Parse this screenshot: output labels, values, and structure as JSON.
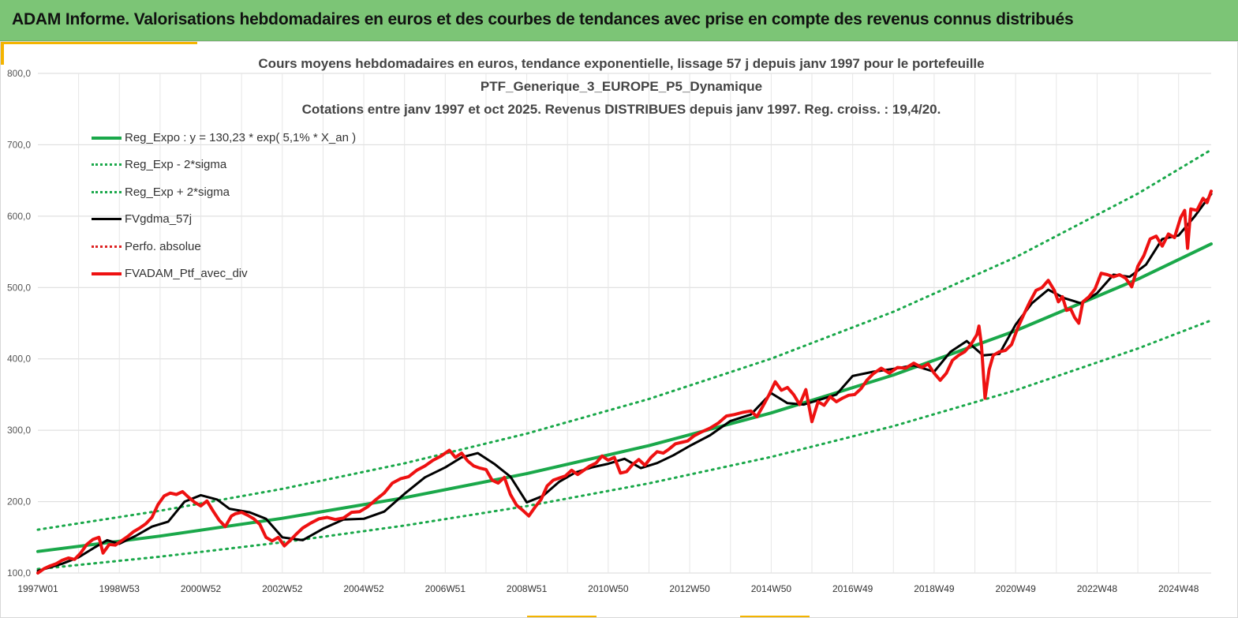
{
  "header": {
    "title": "ADAM Informe. Valorisations hebdomadaires en euros et des courbes de tendances avec prise en compte des revenus connus distribués"
  },
  "colors": {
    "header_bg": "#7cc576",
    "accent": "#f4b400",
    "trend": "#1aa84a",
    "smoothed": "#000000",
    "portfolio": "#ee1111",
    "absolute": "#dd2222"
  },
  "chart_data": {
    "type": "line",
    "title_lines": [
      "Cours moyens hebdomadaires  en euros, tendance exponentielle, lissage 57 j depuis janv 1997 pour le portefeuille",
      "PTF_Generique_3_EUROPE_P5_Dynamique",
      "Cotations  entre janv 1997 et oct 2025. Revenus DISTRIBUES depuis janv 1997. Reg. croiss. : 19,4/20."
    ],
    "xlabel": "",
    "ylabel": "",
    "xlim": [
      1997.0,
      2025.8
    ],
    "ylim": [
      100,
      800
    ],
    "y_ticks": [
      "100,0",
      "200,0",
      "300,0",
      "400,0",
      "500,0",
      "600,0",
      "700,0",
      "800,0"
    ],
    "x_ticks": [
      {
        "label": "1997W01",
        "x": 1997.0
      },
      {
        "label": "1998W53",
        "x": 1999.0
      },
      {
        "label": "2000W52",
        "x": 2001.0
      },
      {
        "label": "2002W52",
        "x": 2003.0
      },
      {
        "label": "2004W52",
        "x": 2005.0
      },
      {
        "label": "2006W51",
        "x": 2007.0
      },
      {
        "label": "2008W51",
        "x": 2009.0
      },
      {
        "label": "2010W50",
        "x": 2011.0
      },
      {
        "label": "2012W50",
        "x": 2013.0
      },
      {
        "label": "2014W50",
        "x": 2015.0
      },
      {
        "label": "2016W49",
        "x": 2017.0
      },
      {
        "label": "2018W49",
        "x": 2019.0
      },
      {
        "label": "2020W49",
        "x": 2021.0
      },
      {
        "label": "2022W48",
        "x": 2023.0
      },
      {
        "label": "2024W48",
        "x": 2025.0
      }
    ],
    "grid": true,
    "legend_position": "top-left",
    "series": [
      {
        "name": "Reg_Expo : y = 130,23 * exp( 5,1% *  X_an )",
        "style": "solid-thick",
        "color": "#1aa84a",
        "x": [
          1997.0,
          2000.0,
          2003.0,
          2006.0,
          2009.0,
          2012.0,
          2015.0,
          2018.0,
          2021.0,
          2024.0,
          2025.8
        ],
        "values": [
          130.2,
          151.7,
          176.6,
          205.5,
          239.2,
          278.5,
          324.3,
          377.5,
          439.5,
          511.7,
          561.0
        ]
      },
      {
        "name": "Reg_Exp - 2*sigma",
        "style": "dotted",
        "color": "#1aa84a",
        "x": [
          1997.0,
          2000.0,
          2003.0,
          2006.0,
          2009.0,
          2012.0,
          2015.0,
          2018.0,
          2021.0,
          2024.0,
          2025.8
        ],
        "values": [
          105.5,
          122.9,
          143.0,
          166.5,
          193.8,
          225.6,
          262.7,
          305.8,
          356.0,
          414.5,
          454.0
        ]
      },
      {
        "name": "Reg_Exp + 2*sigma",
        "style": "dotted",
        "color": "#1aa84a",
        "x": [
          1997.0,
          2000.0,
          2003.0,
          2006.0,
          2009.0,
          2012.0,
          2015.0,
          2018.0,
          2021.0,
          2024.0,
          2025.8
        ],
        "values": [
          160.7,
          187.2,
          217.9,
          253.7,
          295.3,
          343.8,
          400.3,
          466.0,
          542.5,
          631.6,
          693.0
        ]
      },
      {
        "name": "FVgdma_57j",
        "style": "solid",
        "color": "#000000",
        "x": [
          1997.0,
          1997.3,
          1997.6,
          1998.0,
          1998.4,
          1998.7,
          1999.0,
          1999.4,
          1999.8,
          2000.2,
          2000.6,
          2001.0,
          2001.4,
          2001.7,
          2002.2,
          2002.6,
          2003.0,
          2003.5,
          2004.0,
          2004.5,
          2005.0,
          2005.5,
          2006.0,
          2006.5,
          2007.0,
          2007.4,
          2007.8,
          2008.2,
          2008.6,
          2009.0,
          2009.4,
          2009.8,
          2010.2,
          2010.6,
          2011.0,
          2011.4,
          2011.8,
          2012.2,
          2012.6,
          2013.0,
          2013.5,
          2014.0,
          2014.5,
          2015.0,
          2015.4,
          2015.8,
          2016.2,
          2016.6,
          2017.0,
          2017.5,
          2018.0,
          2018.5,
          2019.0,
          2019.4,
          2019.8,
          2020.2,
          2020.6,
          2021.0,
          2021.4,
          2021.8,
          2022.2,
          2022.6,
          2023.0,
          2023.4,
          2023.8,
          2024.2,
          2024.6,
          2025.0,
          2025.4,
          2025.8
        ],
        "values": [
          103,
          108,
          113,
          122,
          136,
          146,
          141,
          152,
          165,
          172,
          200,
          209,
          203,
          190,
          185,
          176,
          150,
          146,
          162,
          175,
          176,
          186,
          211,
          234,
          248,
          262,
          268,
          253,
          235,
          199,
          208,
          228,
          241,
          248,
          253,
          260,
          247,
          254,
          265,
          278,
          293,
          313,
          322,
          352,
          338,
          336,
          343,
          350,
          376,
          382,
          386,
          391,
          382,
          410,
          425,
          405,
          407,
          448,
          478,
          497,
          485,
          478,
          492,
          518,
          515,
          532,
          568,
          573,
          600,
          631
        ]
      },
      {
        "name": "Perfo. absolue",
        "style": "dotted",
        "color": "#dd2222",
        "x": [],
        "values": []
      },
      {
        "name": "FVADAM_Ptf_avec_div",
        "style": "solid-thick",
        "color": "#ee1111",
        "x": [
          1997.0,
          1997.15,
          1997.3,
          1997.45,
          1997.6,
          1997.75,
          1997.9,
          1998.05,
          1998.2,
          1998.35,
          1998.5,
          1998.6,
          1998.75,
          1998.9,
          1999.05,
          1999.2,
          1999.35,
          1999.5,
          1999.65,
          1999.8,
          1999.95,
          2000.1,
          2000.25,
          2000.4,
          2000.55,
          2000.7,
          2000.85,
          2001.0,
          2001.15,
          2001.3,
          2001.45,
          2001.6,
          2001.75,
          2001.85,
          2002.0,
          2002.15,
          2002.3,
          2002.45,
          2002.6,
          2002.75,
          2002.9,
          2003.05,
          2003.2,
          2003.35,
          2003.5,
          2003.7,
          2003.9,
          2004.1,
          2004.3,
          2004.5,
          2004.7,
          2004.9,
          2005.1,
          2005.3,
          2005.5,
          2005.7,
          2005.9,
          2006.1,
          2006.3,
          2006.5,
          2006.7,
          2006.9,
          2007.1,
          2007.25,
          2007.4,
          2007.55,
          2007.7,
          2007.85,
          2008.0,
          2008.15,
          2008.3,
          2008.45,
          2008.6,
          2008.75,
          2008.9,
          2009.05,
          2009.2,
          2009.35,
          2009.5,
          2009.65,
          2009.8,
          2009.95,
          2010.1,
          2010.25,
          2010.4,
          2010.55,
          2010.7,
          2010.85,
          2011.0,
          2011.15,
          2011.3,
          2011.45,
          2011.6,
          2011.75,
          2011.9,
          2012.05,
          2012.2,
          2012.35,
          2012.5,
          2012.65,
          2012.8,
          2012.95,
          2013.1,
          2013.3,
          2013.5,
          2013.7,
          2013.9,
          2014.1,
          2014.3,
          2014.5,
          2014.65,
          2014.8,
          2014.95,
          2015.1,
          2015.25,
          2015.4,
          2015.55,
          2015.7,
          2015.85,
          2016.0,
          2016.15,
          2016.3,
          2016.45,
          2016.6,
          2016.75,
          2016.9,
          2017.05,
          2017.2,
          2017.35,
          2017.5,
          2017.7,
          2017.9,
          2018.1,
          2018.3,
          2018.5,
          2018.7,
          2018.85,
          2019.0,
          2019.15,
          2019.3,
          2019.45,
          2019.6,
          2019.75,
          2019.9,
          2020.05,
          2020.1,
          2020.16,
          2020.25,
          2020.35,
          2020.45,
          2020.6,
          2020.75,
          2020.9,
          2021.05,
          2021.2,
          2021.35,
          2021.5,
          2021.65,
          2021.8,
          2021.95,
          2022.05,
          2022.15,
          2022.25,
          2022.35,
          2022.45,
          2022.55,
          2022.65,
          2022.8,
          2022.95,
          2023.1,
          2023.25,
          2023.4,
          2023.55,
          2023.7,
          2023.85,
          2024.0,
          2024.15,
          2024.3,
          2024.45,
          2024.6,
          2024.75,
          2024.9,
          2025.05,
          2025.15,
          2025.22,
          2025.3,
          2025.45,
          2025.6,
          2025.7,
          2025.8
        ],
        "values": [
          100,
          106,
          110,
          113,
          118,
          121,
          119,
          128,
          140,
          147,
          150,
          128,
          140,
          139,
          145,
          151,
          158,
          163,
          169,
          178,
          196,
          208,
          212,
          210,
          214,
          206,
          199,
          194,
          201,
          187,
          174,
          165,
          180,
          183,
          185,
          181,
          176,
          168,
          150,
          145,
          150,
          138,
          146,
          155,
          163,
          170,
          176,
          178,
          175,
          177,
          185,
          186,
          193,
          203,
          212,
          226,
          232,
          235,
          244,
          250,
          258,
          264,
          272,
          262,
          268,
          257,
          250,
          247,
          245,
          230,
          226,
          234,
          210,
          195,
          188,
          180,
          192,
          203,
          222,
          230,
          233,
          236,
          244,
          238,
          244,
          250,
          254,
          264,
          258,
          262,
          240,
          242,
          252,
          259,
          251,
          262,
          270,
          268,
          274,
          281,
          283,
          285,
          292,
          298,
          303,
          310,
          320,
          322,
          325,
          327,
          319,
          334,
          350,
          368,
          356,
          360,
          350,
          336,
          357,
          312,
          340,
          335,
          347,
          340,
          345,
          349,
          350,
          358,
          370,
          379,
          387,
          380,
          388,
          387,
          394,
          388,
          393,
          380,
          370,
          380,
          398,
          405,
          410,
          420,
          434,
          446,
          420,
          345,
          385,
          405,
          410,
          412,
          420,
          443,
          462,
          480,
          496,
          500,
          510,
          496,
          480,
          487,
          468,
          470,
          458,
          450,
          480,
          487,
          498,
          520,
          518,
          515,
          518,
          513,
          501,
          530,
          545,
          568,
          572,
          558,
          575,
          570,
          598,
          608,
          555,
          610,
          608,
          625,
          619,
          635
        ]
      }
    ]
  },
  "legend": {
    "items": [
      {
        "label": "Reg_Expo : y = 130,23 * exp( 5,1% *  X_an )"
      },
      {
        "label": "Reg_Exp - 2*sigma"
      },
      {
        "label": "Reg_Exp + 2*sigma"
      },
      {
        "label": "FVgdma_57j"
      },
      {
        "label": "Perfo. absolue"
      },
      {
        "label": "FVADAM_Ptf_avec_div"
      }
    ]
  }
}
